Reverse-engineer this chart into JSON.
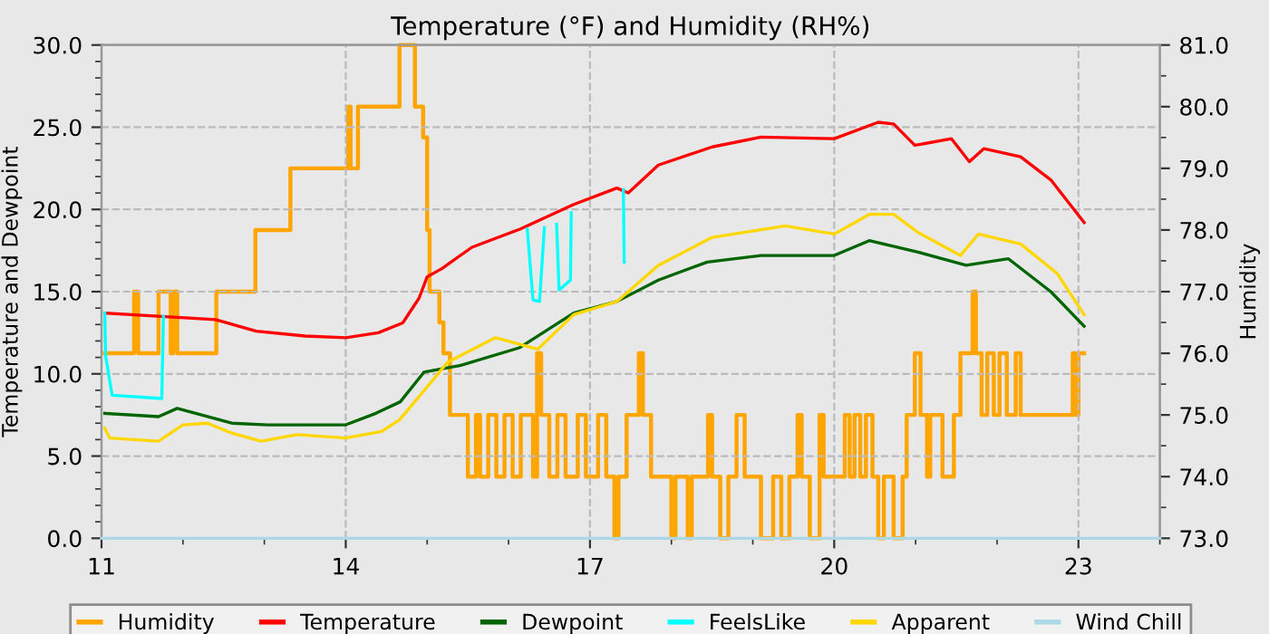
{
  "chart_data": {
    "type": "line",
    "title": "Temperature (°F) and Humidity (RH%)",
    "ylabel": "Temperature and Dewpoint",
    "y2label": "Humidity",
    "xlim": [
      11,
      24
    ],
    "ylim": [
      0,
      30
    ],
    "y2lim": [
      73,
      81
    ],
    "xticks": [
      11,
      {
        "value": 12,
        "label": null
      },
      {
        "value": 13,
        "label": null
      },
      14,
      {
        "value": 15,
        "label": null
      },
      {
        "value": 16,
        "label": null
      },
      17,
      {
        "value": 18,
        "label": null
      },
      {
        "value": 19,
        "label": null
      },
      20,
      {
        "value": 21,
        "label": null
      },
      {
        "value": 22,
        "label": null
      },
      23,
      {
        "value": 24,
        "label": null
      }
    ],
    "yticks": [
      {
        "value": 0,
        "label": "0.0"
      },
      {
        "value": 1,
        "label": null
      },
      {
        "value": 2,
        "label": null
      },
      {
        "value": 3,
        "label": null
      },
      {
        "value": 4,
        "label": null
      },
      {
        "value": 5,
        "label": "5.0"
      },
      {
        "value": 6,
        "label": null
      },
      {
        "value": 7,
        "label": null
      },
      {
        "value": 8,
        "label": null
      },
      {
        "value": 9,
        "label": null
      },
      {
        "value": 10,
        "label": "10.0"
      },
      {
        "value": 11,
        "label": null
      },
      {
        "value": 12,
        "label": null
      },
      {
        "value": 13,
        "label": null
      },
      {
        "value": 14,
        "label": null
      },
      {
        "value": 15,
        "label": "15.0"
      },
      {
        "value": 16,
        "label": null
      },
      {
        "value": 17,
        "label": null
      },
      {
        "value": 18,
        "label": null
      },
      {
        "value": 19,
        "label": null
      },
      {
        "value": 20,
        "label": "20.0"
      },
      {
        "value": 21,
        "label": null
      },
      {
        "value": 22,
        "label": null
      },
      {
        "value": 23,
        "label": null
      },
      {
        "value": 24,
        "label": null
      },
      {
        "value": 25,
        "label": "25.0"
      },
      {
        "value": 26,
        "label": null
      },
      {
        "value": 27,
        "label": null
      },
      {
        "value": 28,
        "label": null
      },
      {
        "value": 29,
        "label": null
      },
      {
        "value": 30,
        "label": "30.0"
      }
    ],
    "y2ticks": [
      {
        "value": 73,
        "label": "73.0"
      },
      {
        "value": 73.5,
        "label": null
      },
      {
        "value": 74,
        "label": "74.0"
      },
      {
        "value": 74.5,
        "label": null
      },
      {
        "value": 75,
        "label": "75.0"
      },
      {
        "value": 75.5,
        "label": null
      },
      {
        "value": 76,
        "label": "76.0"
      },
      {
        "value": 76.5,
        "label": null
      },
      {
        "value": 77,
        "label": "77.0"
      },
      {
        "value": 77.5,
        "label": null
      },
      {
        "value": 78,
        "label": "78.0"
      },
      {
        "value": 78.5,
        "label": null
      },
      {
        "value": 79,
        "label": "79.0"
      },
      {
        "value": 79.5,
        "label": null
      },
      {
        "value": 80,
        "label": "80.0"
      },
      {
        "value": 80.5,
        "label": null
      },
      {
        "value": 81,
        "label": "81.0"
      }
    ],
    "grid": true,
    "legend": "bottom",
    "marker": "none",
    "line_style": "solid",
    "series": [
      {
        "name": "Humidity",
        "color": "#ffa500",
        "type": "step",
        "axis": "y2",
        "x": [
          11.04,
          11.4,
          11.45,
          11.7,
          11.85,
          11.88,
          11.93,
          12.41,
          12.89,
          13.32,
          14.03,
          14.06,
          14.15,
          14.66,
          14.85,
          14.95,
          15.0,
          15.03,
          15.15,
          15.2,
          15.28,
          15.5,
          15.6,
          15.65,
          15.75,
          15.85,
          15.95,
          16.05,
          16.15,
          16.3,
          16.35,
          16.4,
          16.5,
          16.6,
          16.7,
          16.85,
          16.95,
          17.1,
          17.2,
          17.3,
          17.35,
          17.45,
          17.6,
          17.65,
          17.75,
          18.0,
          18.05,
          18.2,
          18.25,
          18.45,
          18.5,
          18.6,
          18.7,
          18.8,
          18.9,
          19.1,
          19.25,
          19.35,
          19.45,
          19.55,
          19.6,
          19.7,
          19.82,
          19.87,
          20.13,
          20.19,
          20.25,
          20.32,
          20.39,
          20.47,
          20.54,
          20.61,
          20.73,
          20.84,
          20.89,
          20.99,
          21.06,
          21.14,
          21.18,
          21.33,
          21.47,
          21.55,
          21.7,
          21.74,
          21.81,
          21.88,
          21.96,
          22.03,
          22.12,
          22.23,
          22.29,
          22.93,
          22.97,
          23.0,
          23.07
        ],
        "values": [
          76,
          77,
          76,
          77,
          76,
          77,
          76,
          77,
          78,
          79,
          80,
          79,
          80,
          81,
          80,
          79.5,
          78,
          77,
          76.5,
          76,
          75,
          74,
          75,
          74,
          75,
          74,
          75,
          74,
          75,
          74,
          76,
          75,
          74,
          75,
          74,
          75,
          74,
          75,
          74,
          73,
          74,
          75,
          76,
          75,
          74,
          73,
          74,
          73,
          74,
          75,
          74,
          73,
          74,
          75,
          74,
          73,
          74,
          73,
          74,
          75,
          74,
          73,
          75,
          74,
          75,
          74,
          75,
          74,
          75,
          74,
          73,
          74,
          73,
          74,
          75,
          76,
          75,
          74,
          75,
          74,
          75,
          76,
          77,
          76,
          75,
          76,
          75,
          76,
          75,
          76,
          75,
          76,
          75,
          76,
          76
        ]
      },
      {
        "name": "Temperature",
        "color": "#ff0000",
        "x": [
          11.04,
          12.4,
          12.9,
          13.5,
          14.0,
          14.4,
          14.7,
          14.9,
          15.0,
          15.18,
          15.55,
          16.14,
          16.8,
          17.33,
          17.47,
          17.84,
          18.5,
          19.1,
          20.0,
          20.54,
          20.73,
          20.99,
          21.44,
          21.66,
          21.84,
          22.29,
          22.66,
          23.07
        ],
        "values": [
          13.7,
          13.3,
          12.6,
          12.3,
          12.2,
          12.5,
          13.1,
          14.6,
          15.9,
          16.4,
          17.7,
          18.8,
          20.3,
          21.3,
          21.0,
          22.7,
          23.8,
          24.4,
          24.3,
          25.3,
          25.2,
          23.9,
          24.3,
          22.9,
          23.7,
          23.2,
          21.8,
          19.2
        ]
      },
      {
        "name": "Dewpoint",
        "color": "#006400",
        "x": [
          11.04,
          11.7,
          11.93,
          12.6,
          13.04,
          14.0,
          14.37,
          14.67,
          14.96,
          15.4,
          16.14,
          16.8,
          17.33,
          17.84,
          18.44,
          19.1,
          20.0,
          20.43,
          21.03,
          21.62,
          22.14,
          22.66,
          23.07
        ],
        "values": [
          7.6,
          7.4,
          7.9,
          7.0,
          6.9,
          6.9,
          7.6,
          8.3,
          10.1,
          10.5,
          11.6,
          13.7,
          14.4,
          15.7,
          16.8,
          17.2,
          17.2,
          18.1,
          17.4,
          16.6,
          17.0,
          15.0,
          12.9
        ]
      },
      {
        "name": "FeelsLike",
        "color": "#00ffff",
        "x": [
          11.04,
          11.05,
          11.13,
          11.74,
          11.76,
          11.77,
          16.22,
          16.23,
          16.3,
          16.38,
          16.44,
          16.45,
          16.58,
          16.59,
          16.62,
          16.76,
          16.77,
          16.78,
          17.4,
          17.41,
          17.42
        ],
        "values": [
          13.7,
          11.1,
          8.7,
          8.5,
          13.5,
          null,
          null,
          18.8,
          14.5,
          14.4,
          18.9,
          null,
          null,
          19.1,
          15.1,
          15.7,
          19.8,
          null,
          null,
          21.2,
          16.8
        ]
      },
      {
        "name": "Apparent",
        "color": "#ffd700",
        "x": [
          11.04,
          11.1,
          11.7,
          12.0,
          12.3,
          12.6,
          12.96,
          13.4,
          14.0,
          14.44,
          14.66,
          15.1,
          15.25,
          15.84,
          16.36,
          16.8,
          17.33,
          17.84,
          18.5,
          19.4,
          20.0,
          20.43,
          20.73,
          21.03,
          21.55,
          21.77,
          22.29,
          22.74,
          23.07
        ],
        "values": [
          6.7,
          6.1,
          5.9,
          6.9,
          7.0,
          6.4,
          5.9,
          6.3,
          6.1,
          6.5,
          7.2,
          9.8,
          10.7,
          12.2,
          11.5,
          13.6,
          14.4,
          16.6,
          18.3,
          19.0,
          18.5,
          19.7,
          19.7,
          18.6,
          17.2,
          18.5,
          17.9,
          16.1,
          13.6
        ]
      },
      {
        "name": "Wind Chill",
        "color": "#add8e6",
        "x": [
          11,
          24
        ],
        "values": [
          0,
          0
        ]
      }
    ]
  }
}
